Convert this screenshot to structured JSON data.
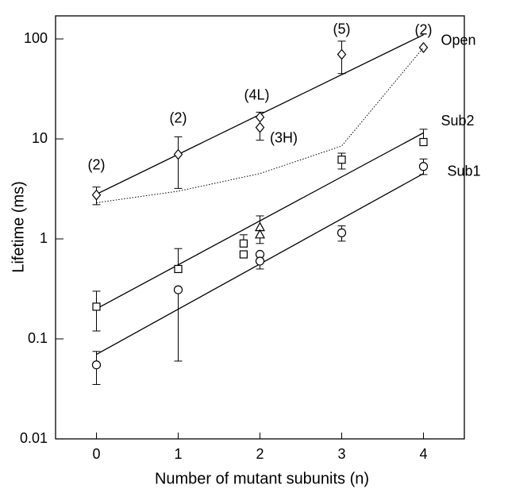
{
  "chart_data": {
    "type": "scatter",
    "x_label": "Number of mutant subunits (n)",
    "y_label": "Lifetime (ms)",
    "xlim": [
      -0.5,
      4.5
    ],
    "xticks": [
      0,
      1,
      2,
      3,
      4
    ],
    "ylim": [
      0.01,
      170
    ],
    "yticks": [
      0.01,
      0.1,
      1,
      10,
      100
    ],
    "log_y": true,
    "color": "#000000",
    "series": [
      {
        "name": "Open",
        "marker": "diamond",
        "x": [
          0,
          1,
          2,
          2,
          3,
          4
        ],
        "values": [
          2.75,
          7,
          16.5,
          13,
          70,
          82
        ],
        "lower": [
          2.2,
          3.2,
          null,
          9.7,
          45,
          null
        ],
        "upper": [
          3.3,
          10.5,
          18.5,
          null,
          95,
          null
        ],
        "point_labels": [
          "(2)",
          "(2)",
          "(4L)",
          "(3H)",
          "(5)",
          "(2)"
        ],
        "fit_x": [
          0,
          4
        ],
        "fit_values": [
          2.8,
          110
        ]
      },
      {
        "name": "Sub2",
        "markers": [
          "square",
          "square",
          "square",
          "square",
          "triangle",
          "triangle",
          "square",
          "square"
        ],
        "x": [
          0,
          1,
          1.8,
          1.8,
          2,
          2,
          3,
          4
        ],
        "values": [
          0.21,
          0.5,
          0.9,
          0.7,
          1.3,
          1.1,
          6.2,
          9.3
        ],
        "lower": [
          0.12,
          null,
          null,
          0.65,
          null,
          0.9,
          5.0,
          null
        ],
        "upper": [
          0.3,
          0.8,
          1.1,
          null,
          1.7,
          null,
          7.2,
          12.5
        ],
        "fit_x": [
          0,
          4
        ],
        "fit_values": [
          0.2,
          11.5
        ]
      },
      {
        "name": "Sub1",
        "marker": "circle",
        "x": [
          0,
          1,
          2,
          2,
          3,
          4
        ],
        "values": [
          0.055,
          0.31,
          0.7,
          0.6,
          1.15,
          5.3
        ],
        "lower": [
          0.035,
          0.06,
          null,
          0.5,
          0.95,
          4.4
        ],
        "upper": [
          0.075,
          null,
          null,
          null,
          1.35,
          6.3
        ],
        "fit_x": [
          0,
          4
        ],
        "fit_values": [
          0.07,
          4.5
        ]
      },
      {
        "style": "dotted",
        "x": [
          0,
          1,
          2,
          3,
          4
        ],
        "values": [
          2.3,
          3,
          4.5,
          8.5,
          82
        ]
      }
    ]
  }
}
